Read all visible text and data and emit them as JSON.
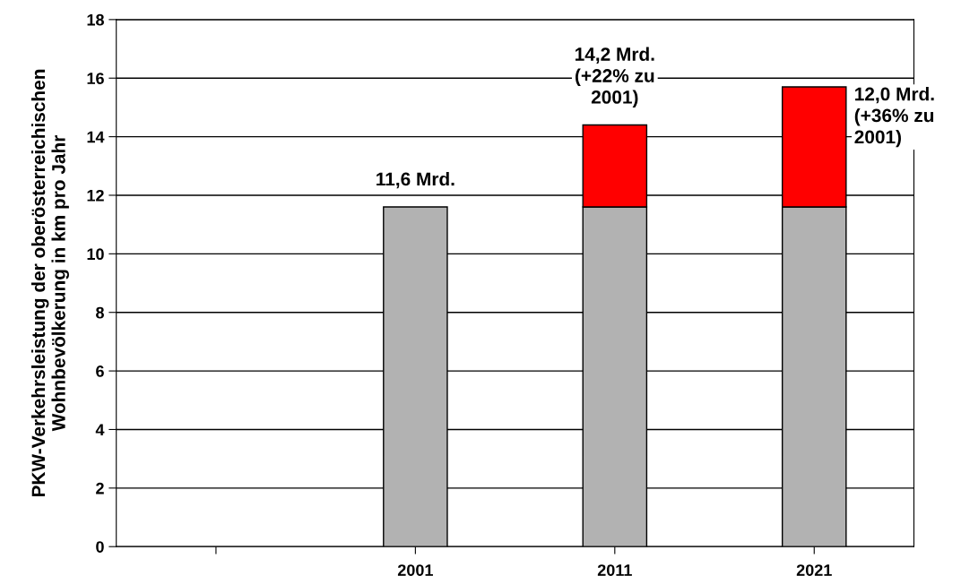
{
  "chart_data": {
    "type": "bar",
    "stacked": true,
    "ylabel": "PKW-Verkehrsleistung der oberösterreichischen\nWohnbevölkerung in km pro Jahr",
    "categories": [
      null,
      "2001",
      "2011",
      "2021"
    ],
    "series": [
      {
        "color": "#b2b2b2",
        "values": [
          null,
          11.6,
          11.6,
          11.6
        ]
      },
      {
        "color": "#ff0000",
        "values": [
          null,
          null,
          2.8,
          4.1
        ]
      }
    ],
    "ylim": [
      0,
      18
    ],
    "yticks": [
      0,
      2,
      4,
      6,
      8,
      10,
      12,
      14,
      16,
      18
    ],
    "grid": "y",
    "annotations": [
      {
        "text": "11,6 Mrd.",
        "x": "2001",
        "y": 11.6
      },
      {
        "text": "14,2 Mrd.\n(+22% zu\n2001)",
        "x": "2011",
        "y": 14.4
      },
      {
        "text": "12,0 Mrd.\n(+36% zu\n2001)",
        "x": "2021",
        "y": 15.7
      }
    ]
  }
}
